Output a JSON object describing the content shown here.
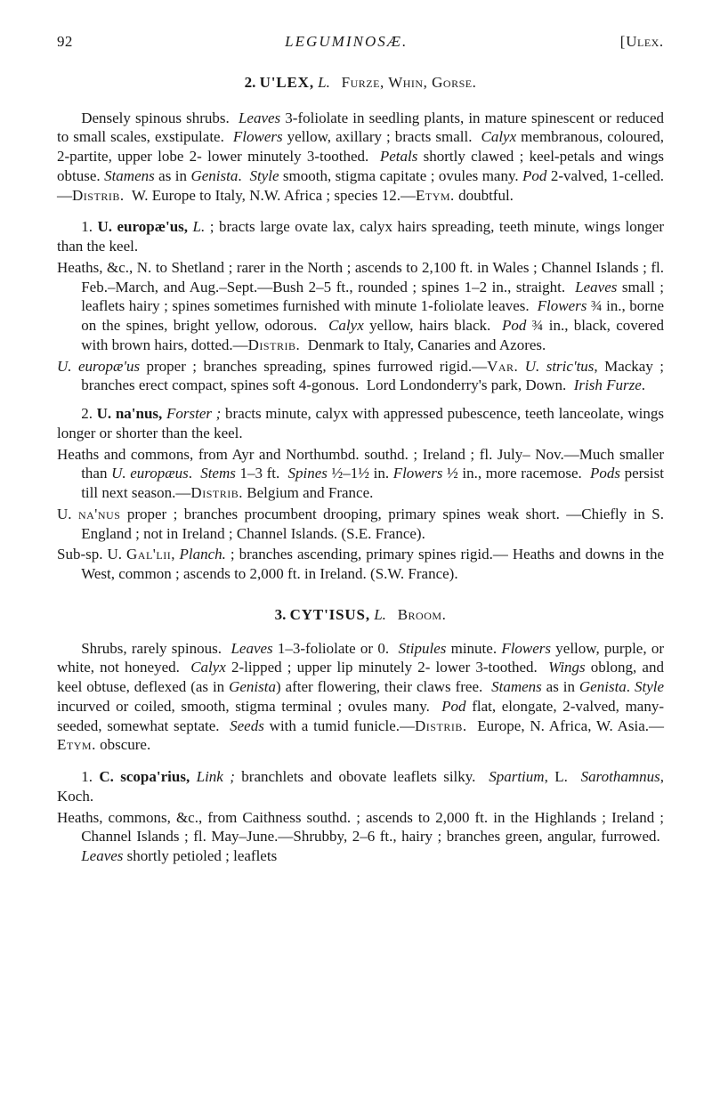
{
  "page_number": "92",
  "running_title": "LEGUMINOSÆ.",
  "running_right": "[Ulex.",
  "genus2": {
    "number": "2.",
    "name": "U'LEX,",
    "authority": "L.",
    "common": "Furze, Whin, Gorse."
  },
  "genus2_desc": "Densely spinous shrubs.  Leaves 3-foliolate in seedling plants, in mature spinescent or reduced to small scales, exstipulate.  Flowers yellow, axillary ; bracts small.  Calyx membranous, coloured, 2-partite, upper lobe 2- lower minutely 3-toothed.  Petals shortly clawed ; keel-petals and wings obtuse. Stamens as in Genista.  Style smooth, stigma capitate ; ovules many. Pod 2-valved, 1-celled.—Distrib.  W. Europe to Italy, N.W. Africa ; species 12.—Etym. doubtful.",
  "sp1": {
    "head": "1. U. europæ'us, L. ; bracts large ovate lax, calyx hairs spreading, teeth minute, wings longer than the keel.",
    "dist": "Heaths, &c., N. to Shetland ; rarer in the North ; ascends to 2,100 ft. in Wales ; Channel Islands ; fl. Feb.–March, and Aug.–Sept.—Bush 2–5 ft., rounded ; spines 1–2 in., straight.  Leaves small ; leaflets hairy ; spines sometimes furnished with minute 1-foliolate leaves.  Flowers ¾ in., borne on the spines, bright yellow, odorous.  Calyx yellow, hairs black.  Pod ¾ in., black, covered with brown hairs, dotted.—Distrib.  Denmark to Italy, Canaries and Azores.",
    "var": "U. europæ'us proper ; branches spreading, spines furrowed rigid.—Var. U. stric'tus, Mackay ; branches erect compact, spines soft 4-gonous.  Lord Londonderry's park, Down.  Irish Furze."
  },
  "sp2": {
    "head": "2. U. na'nus, Forster ; bracts minute, calyx with appressed pubescence, teeth lanceolate, wings longer or shorter than the keel.",
    "dist": "Heaths and commons, from Ayr and Northumbd. southd. ; Ireland ; fl. July–Nov.—Much smaller than U. europæus.  Stems 1–3 ft.  Spines ½–1½ in. Flowers ½ in., more racemose.  Pods persist till next season.—Distrib. Belgium and France.",
    "var1": "U. na'nus proper ; branches procumbent drooping, primary spines weak short. —Chiefly in S. England ; not in Ireland ; Channel Islands. (S.E. France).",
    "var2": "Sub-sp. U. Gal'lii, Planch. ; branches ascending, primary spines rigid.— Heaths and downs in the West, common ; ascends to 2,000 ft. in Ireland. (S.W. France)."
  },
  "genus3": {
    "number": "3.",
    "name": "CYT'ISUS,",
    "authority": "L.",
    "common": "Broom."
  },
  "genus3_desc": "Shrubs, rarely spinous.  Leaves 1–3-foliolate or 0.  Stipules minute. Flowers yellow, purple, or white, not honeyed.  Calyx 2-lipped ; upper lip minutely 2- lower 3-toothed.  Wings oblong, and keel obtuse, deflexed (as in Genista) after flowering, their claws free.  Stamens as in Genista. Style incurved or coiled, smooth, stigma terminal ; ovules many.  Pod flat, elongate, 2-valved, many-seeded, somewhat septate.  Seeds with a tumid funicle.—Distrib.  Europe, N. Africa, W. Asia.—Etym. obscure.",
  "sp3": {
    "head": "1. C. scopa'rius, Link ; branchlets and obovate leaflets silky.  Spartium, L.  Sarothamnus, Koch.",
    "dist": "Heaths, commons, &c., from Caithness southd. ; ascends to 2,000 ft. in the Highlands ; Ireland ; Channel Islands ; fl. May–June.—Shrubby, 2–6 ft., hairy ; branches green, angular, furrowed.  Leaves shortly petioled ; leaflets"
  }
}
